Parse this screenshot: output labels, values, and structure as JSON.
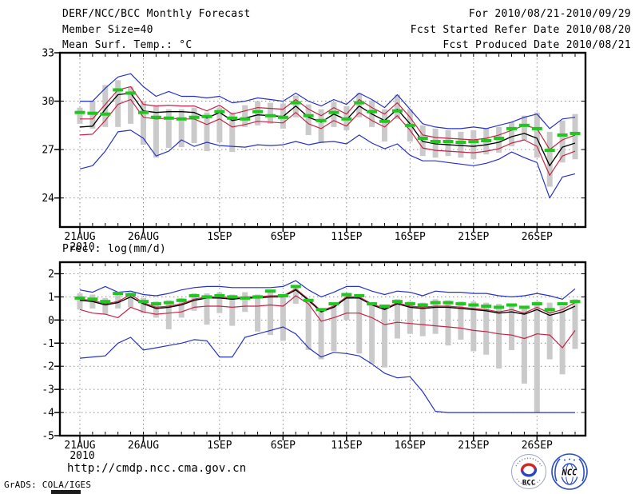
{
  "header": {
    "title": "DERF/NCC/BCC Monthly Forecast",
    "member_size": "Member Size=40",
    "for_range": "For 2010/08/21-2010/09/29",
    "fcst_started": "Fcst Started Refer Date 2010/08/20",
    "fcst_produced": "Fcst Produced Date 2010/08/21"
  },
  "footer": {
    "url": "http://cmdp.ncc.cma.gov.cn",
    "credit": "GrADS: COLA/IGES",
    "logos": [
      {
        "label": "BCC"
      },
      {
        "label": "NCC"
      }
    ]
  },
  "colors": {
    "blue": "#2632c8",
    "red": "#c82346",
    "green": "#1ec81e",
    "black": "#000000",
    "gray": "#cacaca",
    "grid": "#8c8c8c"
  },
  "chart_data": [
    {
      "type": "line",
      "title": "Mean Surf. Temp.: °C",
      "ylabel": "°C",
      "y_range": [
        22.2,
        33
      ],
      "y_ticks": [
        33,
        30,
        27,
        24
      ],
      "x_ticks": [
        {
          "label": "21AUG",
          "day": 0
        },
        {
          "label": "26AUG",
          "day": 5
        },
        {
          "label": "1SEP",
          "day": 11
        },
        {
          "label": "6SEP",
          "day": 16
        },
        {
          "label": "11SEP",
          "day": 21
        },
        {
          "label": "16SEP",
          "day": 26
        },
        {
          "label": "21SEP",
          "day": 31
        },
        {
          "label": "26SEP",
          "day": 36
        }
      ],
      "x_year_label": "2010",
      "x_start": "21AUG2010",
      "x_end": "29SEP2010",
      "n_points": 40,
      "grid": true,
      "series": [
        {
          "name": "ensemble_max",
          "color": "blue",
          "style": "line",
          "values": [
            30.0,
            30.0,
            30.8,
            31.5,
            31.7,
            30.9,
            30.3,
            30.6,
            30.3,
            30.3,
            30.2,
            30.3,
            29.9,
            30.0,
            30.2,
            30.1,
            30.0,
            30.5,
            30.0,
            29.7,
            30.1,
            29.8,
            30.5,
            30.1,
            29.6,
            30.4,
            29.5,
            28.6,
            28.4,
            28.3,
            28.3,
            28.4,
            28.3,
            28.5,
            28.7,
            29.0,
            29.2,
            28.3,
            28.9,
            29.0
          ]
        },
        {
          "name": "upper_band",
          "color": "red",
          "style": "line",
          "values": [
            28.9,
            28.9,
            29.8,
            30.7,
            30.9,
            29.8,
            29.7,
            29.75,
            29.7,
            29.7,
            29.4,
            29.75,
            29.2,
            29.4,
            29.6,
            29.55,
            29.5,
            30.1,
            29.5,
            29.1,
            29.6,
            29.2,
            30.1,
            29.6,
            29.2,
            29.9,
            29.0,
            27.9,
            27.75,
            27.7,
            27.65,
            27.6,
            27.7,
            27.9,
            28.2,
            28.5,
            28.3,
            27.0,
            27.6,
            27.9
          ]
        },
        {
          "name": "lower_band",
          "color": "red",
          "style": "line",
          "values": [
            27.9,
            27.95,
            28.8,
            29.8,
            30.1,
            29.0,
            28.9,
            28.95,
            28.9,
            28.9,
            28.55,
            28.9,
            28.4,
            28.55,
            28.75,
            28.7,
            28.65,
            29.3,
            28.6,
            28.3,
            28.8,
            28.45,
            29.3,
            28.8,
            28.4,
            29.1,
            28.2,
            27.1,
            26.95,
            26.9,
            26.85,
            26.8,
            26.9,
            27.05,
            27.4,
            27.6,
            27.2,
            25.4,
            26.6,
            26.9
          ]
        },
        {
          "name": "ensemble_min",
          "color": "blue",
          "style": "line",
          "values": [
            25.8,
            26.0,
            26.9,
            28.1,
            28.2,
            27.7,
            26.6,
            26.9,
            27.6,
            27.2,
            27.45,
            27.25,
            27.2,
            27.15,
            27.3,
            27.25,
            27.3,
            27.5,
            27.3,
            27.45,
            27.5,
            27.35,
            27.9,
            27.4,
            27.05,
            27.35,
            26.65,
            26.3,
            26.3,
            26.2,
            26.1,
            26.0,
            26.15,
            26.4,
            26.85,
            26.5,
            26.2,
            24.0,
            25.3,
            25.5
          ]
        },
        {
          "name": "ensemble_mean",
          "color": "black",
          "style": "line",
          "values": [
            28.4,
            28.45,
            29.5,
            30.4,
            30.5,
            29.4,
            29.3,
            29.35,
            29.35,
            29.3,
            28.95,
            29.3,
            28.8,
            28.95,
            29.15,
            29.1,
            29.05,
            29.7,
            29.0,
            28.7,
            29.2,
            28.85,
            29.7,
            29.2,
            28.8,
            29.5,
            28.6,
            27.5,
            27.35,
            27.3,
            27.25,
            27.2,
            27.3,
            27.45,
            27.8,
            28.0,
            27.7,
            26.0,
            27.15,
            27.4
          ]
        },
        {
          "name": "daily_reference",
          "color": "green",
          "style": "dash_markers",
          "values": [
            29.3,
            29.25,
            29.2,
            30.7,
            30.5,
            29.3,
            29.0,
            28.95,
            28.9,
            29.0,
            29.05,
            29.35,
            28.95,
            28.9,
            29.35,
            29.1,
            29.0,
            29.9,
            29.1,
            28.8,
            29.3,
            28.9,
            29.9,
            29.35,
            28.75,
            29.4,
            28.5,
            27.7,
            27.5,
            27.5,
            27.45,
            27.5,
            27.55,
            27.7,
            28.3,
            28.5,
            28.3,
            26.95,
            27.9,
            28.0
          ]
        }
      ],
      "bars": {
        "name": "member_spread",
        "color": "gray",
        "low": [
          28.6,
          28.3,
          28.4,
          28.4,
          28.6,
          27.3,
          26.5,
          27.1,
          27.15,
          27.4,
          26.9,
          27.45,
          26.85,
          28.4,
          28.5,
          28.6,
          28.3,
          29.0,
          27.9,
          27.4,
          28.4,
          28.2,
          29.0,
          28.4,
          27.5,
          28.9,
          27.5,
          26.6,
          26.5,
          26.6,
          26.5,
          26.4,
          26.7,
          26.8,
          27.2,
          27.6,
          26.5,
          24.7,
          26.2,
          26.4
        ],
        "high": [
          29.6,
          30.0,
          31.0,
          31.3,
          30.9,
          30.0,
          29.75,
          29.5,
          29.5,
          29.6,
          29.3,
          29.6,
          29.3,
          29.75,
          30.0,
          29.9,
          29.85,
          30.35,
          29.8,
          29.5,
          29.95,
          29.7,
          30.5,
          30.05,
          29.5,
          30.4,
          29.5,
          28.5,
          28.3,
          28.2,
          28.1,
          28.2,
          28.3,
          28.4,
          28.7,
          29.1,
          29.3,
          28.1,
          28.8,
          29.2
        ]
      }
    },
    {
      "type": "line",
      "title": "Prec.: log(mm/d)",
      "ylabel": "log(mm/d)",
      "y_range": [
        -5,
        2.5
      ],
      "y_ticks": [
        2,
        1,
        0,
        -1,
        -2,
        -3,
        -4,
        -5
      ],
      "x_ticks": [
        {
          "label": "21AUG",
          "day": 0
        },
        {
          "label": "26AUG",
          "day": 5
        },
        {
          "label": "1SEP",
          "day": 11
        },
        {
          "label": "6SEP",
          "day": 16
        },
        {
          "label": "11SEP",
          "day": 21
        },
        {
          "label": "16SEP",
          "day": 26
        },
        {
          "label": "21SEP",
          "day": 31
        },
        {
          "label": "26SEP",
          "day": 36
        }
      ],
      "x_year_label": "2010",
      "x_start": "21AUG2010",
      "x_end": "29SEP2010",
      "n_points": 40,
      "grid": true,
      "series": [
        {
          "name": "ensemble_max",
          "color": "blue",
          "style": "line",
          "values": [
            1.3,
            1.2,
            1.45,
            1.2,
            1.25,
            1.1,
            1.05,
            1.15,
            1.3,
            1.4,
            1.45,
            1.45,
            1.4,
            1.4,
            1.4,
            1.4,
            1.45,
            1.7,
            1.3,
            1.0,
            1.2,
            1.45,
            1.45,
            1.25,
            1.1,
            1.25,
            1.2,
            1.05,
            1.25,
            1.2,
            1.2,
            1.15,
            1.15,
            1.05,
            1.0,
            1.05,
            1.15,
            1.05,
            0.9,
            1.35
          ]
        },
        {
          "name": "upper_band",
          "color": "red",
          "style": "line",
          "values": [
            0.9,
            0.85,
            0.7,
            0.8,
            1.1,
            0.75,
            0.55,
            0.6,
            0.7,
            0.9,
            1.0,
            1.0,
            0.95,
            1.0,
            1.0,
            1.05,
            1.05,
            1.35,
            0.9,
            0.4,
            0.6,
            1.0,
            1.0,
            0.7,
            0.5,
            0.75,
            0.6,
            0.55,
            0.6,
            0.6,
            0.55,
            0.5,
            0.45,
            0.35,
            0.45,
            0.3,
            0.55,
            0.3,
            0.45,
            0.75
          ]
        },
        {
          "name": "lower_band",
          "color": "red",
          "style": "line",
          "values": [
            0.45,
            0.3,
            0.25,
            0.1,
            0.55,
            0.35,
            0.25,
            0.3,
            0.35,
            0.55,
            0.6,
            0.6,
            0.55,
            0.6,
            0.6,
            0.65,
            0.6,
            1.05,
            0.7,
            -0.05,
            0.1,
            0.3,
            0.3,
            0.1,
            -0.2,
            -0.1,
            -0.15,
            -0.2,
            -0.25,
            -0.3,
            -0.35,
            -0.45,
            -0.5,
            -0.6,
            -0.65,
            -0.8,
            -0.6,
            -0.65,
            -1.2,
            -0.45
          ]
        },
        {
          "name": "ensemble_min",
          "color": "blue",
          "style": "line",
          "values": [
            -1.65,
            -1.6,
            -1.55,
            -1.0,
            -0.75,
            -1.3,
            -1.2,
            -1.1,
            -1.0,
            -0.85,
            -0.9,
            -1.6,
            -1.6,
            -0.75,
            -0.6,
            -0.45,
            -0.3,
            -0.6,
            -1.2,
            -1.6,
            -1.4,
            -1.45,
            -1.55,
            -1.9,
            -2.3,
            -2.5,
            -2.45,
            -3.1,
            -3.95,
            -4.0,
            -4.0,
            -4.0,
            -4.0,
            -4.0,
            -4.0,
            -4.0,
            -4.0,
            -4.0,
            -4.0,
            -4.0
          ]
        },
        {
          "name": "ensemble_mean",
          "color": "black",
          "style": "line",
          "values": [
            0.85,
            0.8,
            0.65,
            0.75,
            1.0,
            0.7,
            0.5,
            0.55,
            0.65,
            0.85,
            0.95,
            0.95,
            0.9,
            0.95,
            0.95,
            1.0,
            1.0,
            1.3,
            0.85,
            0.35,
            0.55,
            0.95,
            0.95,
            0.65,
            0.45,
            0.7,
            0.55,
            0.5,
            0.55,
            0.55,
            0.5,
            0.45,
            0.4,
            0.3,
            0.35,
            0.25,
            0.45,
            0.2,
            0.35,
            0.6
          ]
        },
        {
          "name": "daily_reference",
          "color": "green",
          "style": "dash_markers",
          "values": [
            0.95,
            0.9,
            0.8,
            1.15,
            1.1,
            0.8,
            0.7,
            0.75,
            0.85,
            1.05,
            1.0,
            1.05,
            1.0,
            0.95,
            1.0,
            1.25,
            1.05,
            1.45,
            0.85,
            0.45,
            0.7,
            1.1,
            1.05,
            0.7,
            0.6,
            0.8,
            0.7,
            0.65,
            0.75,
            0.75,
            0.7,
            0.65,
            0.6,
            0.55,
            0.65,
            0.55,
            0.7,
            0.45,
            0.7,
            0.8
          ]
        }
      ],
      "bars": {
        "name": "member_spread",
        "color": "gray",
        "low": [
          0.45,
          0.5,
          0.25,
          0.5,
          0.55,
          0.3,
          0.1,
          -0.4,
          0.1,
          0.4,
          -0.2,
          0.3,
          -0.25,
          0.35,
          -0.5,
          -0.65,
          -0.9,
          0.7,
          -1.3,
          -1.7,
          -1.35,
          0.0,
          -1.45,
          -1.9,
          -2.05,
          -0.8,
          -0.6,
          -0.7,
          -0.6,
          -1.1,
          -0.85,
          -1.35,
          -1.5,
          -2.1,
          -1.3,
          -2.75,
          -4.0,
          -1.7,
          -2.35,
          -1.25
        ],
        "high": [
          1.15,
          1.1,
          0.95,
          1.1,
          1.2,
          0.95,
          0.8,
          0.85,
          0.95,
          1.15,
          1.15,
          1.2,
          1.1,
          1.2,
          1.1,
          1.25,
          1.05,
          1.45,
          0.9,
          0.5,
          0.7,
          1.1,
          1.05,
          0.7,
          0.55,
          0.9,
          0.8,
          0.75,
          0.9,
          0.85,
          0.8,
          0.8,
          0.75,
          0.7,
          0.65,
          0.6,
          0.8,
          0.75,
          0.6,
          0.9
        ]
      }
    }
  ]
}
